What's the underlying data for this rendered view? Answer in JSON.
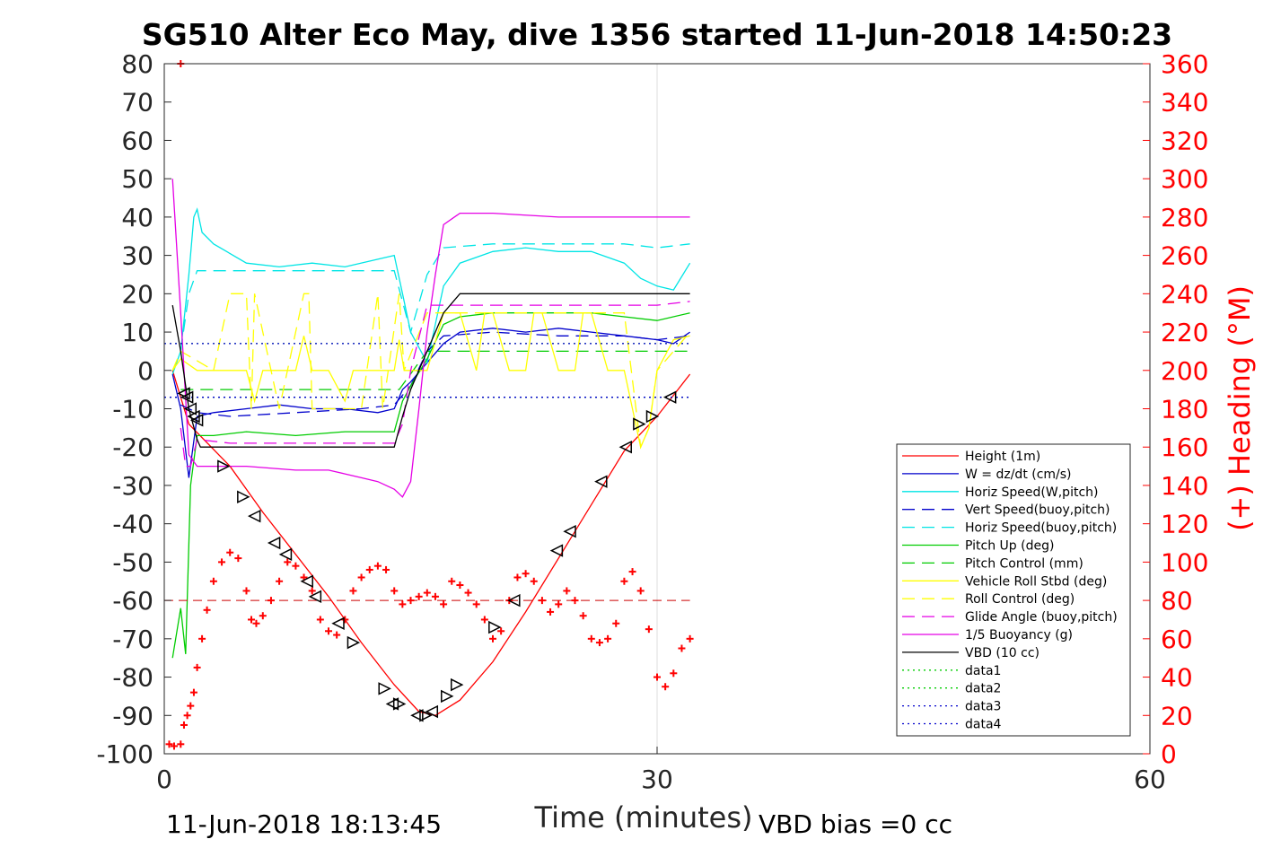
{
  "footer": {
    "timestamp": "11-Jun-2018 18:13:45",
    "vbd_bias": "VBD bias =0 cc"
  },
  "colors": {
    "height": "#ff0000",
    "w": "#0000cc",
    "horiz_w": "#00e5e5",
    "vert_buoy": "#0000cc",
    "horiz_buoy": "#00e5e5",
    "pitch_up": "#00cc00",
    "pitch_ctrl": "#00cc00",
    "roll": "#ffff00",
    "roll_ctrl": "#ffff00",
    "glide": "#e500e5",
    "buoyancy": "#e500e5",
    "vbd": "#000000",
    "heading": "#ff0000"
  },
  "chart_data": {
    "type": "line",
    "title": "SG510 Alter Eco May, dive 1356 started 11-Jun-2018 14:50:23",
    "xlabel": "Time (minutes)",
    "ylabel_left": "",
    "ylabel_right": "(+) Heading (°M)",
    "xlim": [
      0,
      60
    ],
    "ylim_left": [
      -100,
      80
    ],
    "ylim_right": [
      0,
      360
    ],
    "x_ticks": [
      0,
      30,
      60
    ],
    "y_ticks_left": [
      80,
      70,
      60,
      50,
      40,
      30,
      20,
      10,
      0,
      -10,
      -20,
      -30,
      -40,
      -50,
      -60,
      -70,
      -80,
      -90,
      -100
    ],
    "y_ticks_right": [
      360,
      340,
      320,
      300,
      280,
      260,
      240,
      220,
      200,
      180,
      160,
      140,
      120,
      100,
      80,
      60,
      40,
      20,
      0
    ],
    "grid": "x only",
    "legend_position": "lower-right",
    "legend": [
      {
        "label": "Height (1m)",
        "color": "#ff0000",
        "style": "solid"
      },
      {
        "label": "W = dz/dt (cm/s)",
        "color": "#0000cc",
        "style": "solid"
      },
      {
        "label": "Horiz Speed(W,pitch)",
        "color": "#00e5e5",
        "style": "solid"
      },
      {
        "label": "Vert Speed(buoy,pitch)",
        "color": "#0000cc",
        "style": "dashed"
      },
      {
        "label": "Horiz Speed(buoy,pitch)",
        "color": "#00e5e5",
        "style": "dashed"
      },
      {
        "label": "Pitch Up (deg)",
        "color": "#00cc00",
        "style": "solid"
      },
      {
        "label": "Pitch Control (mm)",
        "color": "#00cc00",
        "style": "dashed"
      },
      {
        "label": "Vehicle Roll Stbd (deg)",
        "color": "#ffff00",
        "style": "solid"
      },
      {
        "label": "Roll Control (deg)",
        "color": "#ffff00",
        "style": "dashed"
      },
      {
        "label": "Glide Angle (buoy,pitch)",
        "color": "#e500e5",
        "style": "dashed"
      },
      {
        "label": "1/5 Buoyancy (g)",
        "color": "#e500e5",
        "style": "solid"
      },
      {
        "label": "VBD (10 cc)",
        "color": "#000000",
        "style": "solid"
      },
      {
        "label": "data1",
        "color": "#00cc00",
        "style": "dotted"
      },
      {
        "label": "data2",
        "color": "#00cc00",
        "style": "dotted"
      },
      {
        "label": "data3",
        "color": "#0000cc",
        "style": "dotted"
      },
      {
        "label": "data4",
        "color": "#0000cc",
        "style": "dotted"
      }
    ],
    "series": [
      {
        "name": "Height (1m)",
        "axis": "left",
        "style": "solid",
        "x": [
          0.5,
          1.5,
          4,
          6,
          8,
          10,
          12,
          14,
          15.5,
          16.5,
          18,
          20,
          22,
          24,
          26,
          28,
          30,
          32
        ],
        "y": [
          0,
          -14,
          -25,
          -37,
          -48,
          -59,
          -71,
          -82,
          -89,
          -90,
          -86,
          -76,
          -63,
          -49,
          -35,
          -21,
          -12,
          -1
        ]
      },
      {
        "name": "W = dz/dt (cm/s)",
        "axis": "left",
        "style": "solid",
        "x": [
          0.5,
          1,
          1.5,
          2,
          3,
          5,
          7,
          9,
          11,
          13,
          14,
          14.5,
          15,
          16,
          17,
          18,
          20,
          22,
          24,
          26,
          28,
          30,
          31,
          32
        ],
        "y": [
          -1,
          -10,
          -28,
          -12,
          -11,
          -10,
          -9,
          -10,
          -10,
          -11,
          -10,
          -5,
          -3,
          2,
          7,
          10,
          11,
          10,
          11,
          10,
          9,
          8,
          7,
          10
        ]
      },
      {
        "name": "Horiz Speed(W,pitch)",
        "axis": "left",
        "style": "solid",
        "x": [
          0.5,
          1,
          1.5,
          1.8,
          2,
          2.3,
          3,
          5,
          7,
          9,
          11,
          13,
          14,
          14.5,
          15,
          16,
          17,
          18,
          20,
          22,
          24,
          26,
          28,
          29,
          30,
          31,
          32
        ],
        "y": [
          -1,
          5,
          25,
          40,
          42,
          36,
          33,
          28,
          27,
          28,
          27,
          29,
          30,
          20,
          10,
          2,
          22,
          28,
          31,
          32,
          31,
          31,
          28,
          24,
          22,
          21,
          28
        ]
      },
      {
        "name": "Vert Speed(buoy,pitch)",
        "axis": "left",
        "style": "dashed",
        "x": [
          1,
          2,
          4,
          8,
          12,
          14,
          15,
          16,
          17,
          20,
          24,
          28,
          30,
          32
        ],
        "y": [
          -9,
          -11,
          -12,
          -11,
          -10,
          -9,
          -4,
          5,
          9,
          10,
          9,
          9,
          8,
          9
        ]
      },
      {
        "name": "Horiz Speed(buoy,pitch)",
        "axis": "left",
        "style": "dashed",
        "x": [
          1,
          1.5,
          2,
          4,
          8,
          12,
          14,
          15,
          16,
          17,
          20,
          24,
          28,
          30,
          32
        ],
        "y": [
          5,
          20,
          26,
          26,
          26,
          26,
          26,
          10,
          25,
          32,
          33,
          33,
          33,
          32,
          33
        ]
      },
      {
        "name": "Pitch Up (deg)",
        "axis": "left",
        "style": "solid",
        "x": [
          0.5,
          1,
          1.3,
          1.6,
          2,
          3,
          5,
          8,
          11,
          14,
          14.5,
          15,
          16,
          17,
          18,
          20,
          22,
          24,
          26,
          28,
          30,
          32
        ],
        "y": [
          -75,
          -62,
          -74,
          -30,
          -17,
          -17,
          -16,
          -17,
          -16,
          -16,
          -8,
          -4,
          3,
          12,
          14,
          15,
          15,
          15,
          15,
          14,
          13,
          15
        ]
      },
      {
        "name": "Pitch Control (mm)",
        "axis": "left",
        "style": "dashed",
        "x": [
          1,
          2,
          14,
          14.3,
          16,
          32
        ],
        "y": [
          -5,
          -5,
          -5,
          -5,
          5,
          5
        ]
      },
      {
        "name": "Vehicle Roll Stbd (deg)",
        "axis": "left",
        "style": "solid",
        "x": [
          0.5,
          1,
          2,
          3,
          4,
          5,
          5.5,
          6,
          6.5,
          7,
          8,
          8.5,
          9,
          9.5,
          10,
          11,
          11.5,
          12,
          12.5,
          13,
          14,
          14.3,
          14.6,
          16,
          17,
          18,
          19,
          19.5,
          20,
          21,
          22,
          22.5,
          23,
          24,
          25,
          25.5,
          26,
          27,
          28,
          29,
          29.5,
          30,
          31,
          32
        ],
        "y": [
          0,
          3,
          0,
          0,
          0,
          0,
          -8,
          0,
          0,
          0,
          0,
          9,
          0,
          0,
          0,
          -8,
          0,
          0,
          0,
          0,
          0,
          8,
          0,
          0,
          15,
          15,
          0,
          15,
          15,
          0,
          0,
          15,
          15,
          0,
          0,
          15,
          15,
          0,
          0,
          -20,
          -15,
          0,
          8,
          9
        ]
      },
      {
        "name": "Roll Control (deg)",
        "axis": "left",
        "style": "dashed",
        "x": [
          0.5,
          1,
          3,
          4,
          5,
          5.3,
          5.5,
          7,
          8.5,
          8.8,
          9,
          12,
          13,
          13.3,
          14.3,
          14.6,
          16,
          17,
          19,
          22,
          25,
          28,
          29,
          29.5,
          30,
          32
        ],
        "y": [
          0,
          5,
          0,
          20,
          20,
          -10,
          20,
          -10,
          20,
          20,
          -10,
          -10,
          20,
          -10,
          20,
          0,
          15,
          15,
          15,
          15,
          15,
          15,
          -20,
          -15,
          0,
          10
        ]
      },
      {
        "name": "Glide Angle (buoy,pitch)",
        "axis": "left",
        "style": "dashed",
        "x": [
          1,
          1.3,
          1.6,
          2,
          4,
          8,
          12,
          14,
          14.5,
          15,
          16,
          18,
          22,
          26,
          30,
          32
        ],
        "y": [
          -15,
          -25,
          -25,
          -18,
          -19,
          -19,
          -19,
          -19,
          -14,
          0,
          17,
          17,
          17,
          17,
          17,
          18
        ]
      },
      {
        "name": "1/5 Buoyancy (g)",
        "axis": "left",
        "style": "solid",
        "x": [
          0.5,
          1,
          1.5,
          2,
          5,
          8,
          10,
          11,
          12,
          13,
          14,
          14.5,
          15,
          15.5,
          16,
          16.5,
          17,
          18,
          20,
          24,
          28,
          32
        ],
        "y": [
          50,
          15,
          -22,
          -25,
          -25,
          -26,
          -26,
          -27,
          -28,
          -29,
          -31,
          -33,
          -29,
          -10,
          10,
          25,
          38,
          41,
          41,
          40,
          40,
          40
        ]
      },
      {
        "name": "VBD (10 cc)",
        "axis": "left",
        "style": "solid",
        "x": [
          0.5,
          1,
          1.5,
          2,
          2.2,
          14,
          14.5,
          15,
          16,
          17,
          18,
          32
        ],
        "y": [
          17,
          5,
          -10,
          -18,
          -20,
          -20,
          -12,
          -5,
          5,
          15,
          20,
          20
        ]
      },
      {
        "name": "data1",
        "axis": "left",
        "style": "dotted",
        "x": [
          0,
          32
        ],
        "y": [
          7,
          7
        ]
      },
      {
        "name": "data2",
        "axis": "left",
        "style": "dotted",
        "x": [
          0,
          32
        ],
        "y": [
          -7,
          -7
        ]
      },
      {
        "name": "data3",
        "axis": "left",
        "style": "dotted",
        "x": [
          0,
          32
        ],
        "y": [
          7,
          7
        ]
      },
      {
        "name": "data4",
        "axis": "left",
        "style": "dotted",
        "x": [
          0,
          32
        ],
        "y": [
          -7,
          -7
        ]
      }
    ],
    "heading_reference": {
      "axis": "right",
      "value": 80,
      "x": [
        0,
        32
      ],
      "style": "dashed",
      "color": "#cc0000"
    },
    "heading": {
      "axis": "right",
      "marker": "+",
      "color": "#ff0000",
      "x": [
        0.3,
        0.6,
        1,
        1.2,
        1.4,
        1.6,
        1.8,
        2,
        2.3,
        2.6,
        3,
        3.5,
        4,
        4.5,
        5,
        5.3,
        5.6,
        6,
        6.5,
        7,
        7.5,
        8,
        8.5,
        9,
        9.5,
        10,
        10.5,
        11,
        11.5,
        12,
        12.5,
        13,
        13.5,
        14,
        14.5,
        15,
        15.5,
        16,
        16.5,
        17,
        17.5,
        18,
        18.5,
        19,
        19.5,
        20,
        20.5,
        21,
        21.5,
        22,
        22.5,
        23,
        23.5,
        24,
        24.5,
        25,
        25.5,
        26,
        26.5,
        27,
        27.5,
        28,
        28.5,
        29,
        29.5,
        30,
        30.5,
        31,
        31.5,
        32
      ],
      "y": [
        5,
        4,
        5,
        15,
        20,
        25,
        32,
        45,
        60,
        75,
        90,
        100,
        105,
        102,
        85,
        70,
        68,
        72,
        80,
        90,
        100,
        98,
        92,
        85,
        70,
        64,
        62,
        70,
        85,
        92,
        96,
        98,
        96,
        85,
        78,
        80,
        82,
        84,
        82,
        78,
        90,
        88,
        84,
        78,
        70,
        60,
        64,
        80,
        92,
        94,
        90,
        80,
        74,
        78,
        85,
        80,
        72,
        60,
        58,
        60,
        68,
        90,
        95,
        85,
        65,
        40,
        35,
        42,
        55,
        60
      ]
    },
    "heading_outlier": {
      "x": 1,
      "y": 360
    },
    "markers": {
      "shape": "triangle",
      "color": "#000000",
      "points": [
        [
          1.2,
          -6,
          "left"
        ],
        [
          1.4,
          -7,
          "left"
        ],
        [
          1.6,
          -10,
          "left"
        ],
        [
          1.8,
          -12,
          "left"
        ],
        [
          2,
          -13,
          "left"
        ],
        [
          3.6,
          -25,
          "right"
        ],
        [
          4.8,
          -33,
          "right"
        ],
        [
          5.5,
          -38,
          "left"
        ],
        [
          6.7,
          -45,
          "left"
        ],
        [
          7.4,
          -48,
          "left"
        ],
        [
          8.7,
          -55,
          "left"
        ],
        [
          9.2,
          -59,
          "left"
        ],
        [
          10.6,
          -66,
          "left"
        ],
        [
          11.5,
          -71,
          "right"
        ],
        [
          13.4,
          -83,
          "right"
        ],
        [
          13.9,
          -87,
          "left"
        ],
        [
          14.3,
          -87,
          "right"
        ],
        [
          15.4,
          -90,
          "left"
        ],
        [
          15.9,
          -90,
          "right"
        ],
        [
          16.3,
          -89,
          "left"
        ],
        [
          17.2,
          -85,
          "right"
        ],
        [
          17.8,
          -82,
          "right"
        ],
        [
          20.1,
          -67,
          "right"
        ],
        [
          21.3,
          -60,
          "left"
        ],
        [
          23.9,
          -47,
          "left"
        ],
        [
          24.7,
          -42,
          "left"
        ],
        [
          26.6,
          -29,
          "left"
        ],
        [
          28.1,
          -20,
          "left"
        ],
        [
          28.9,
          -14,
          "right"
        ],
        [
          29.7,
          -12,
          "right"
        ],
        [
          30.8,
          -7,
          "left"
        ]
      ]
    }
  }
}
